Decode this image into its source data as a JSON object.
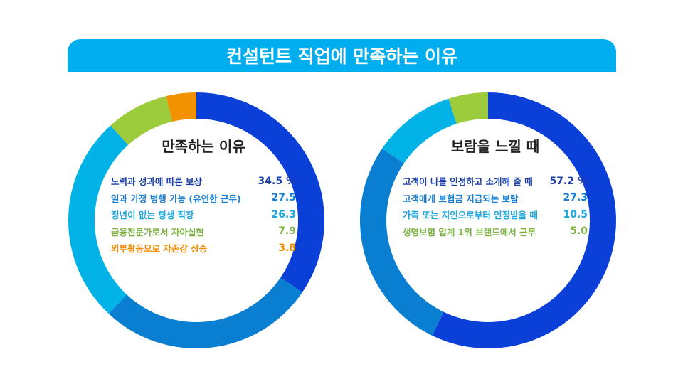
{
  "title": "컨설턴트 직업에 만족하는 이유",
  "chart_data": [
    {
      "type": "pie",
      "title": "만족하는 이유",
      "unit": "%",
      "categories": [
        "노력과 성과에 따른 보상",
        "일과 가정 병행 가능 (유연한 근무)",
        "정년이 없는 평생 직장",
        "금융전문가로서 자아실현",
        "외부활동으로 자존감 상승"
      ],
      "values": [
        34.5,
        27.5,
        26.3,
        7.9,
        3.8
      ],
      "labels": [
        "34.5 %",
        "27.5",
        "26.3",
        "7.9",
        "3.8"
      ],
      "colors": [
        "#0a3fd8",
        "#0a7fd2",
        "#00b2e6",
        "#9ccb3b",
        "#f39200"
      ],
      "label_colors": [
        "#1b3fa8",
        "#1a7fd0",
        "#1aa8de",
        "#7cb342",
        "#f08c00"
      ]
    },
    {
      "type": "pie",
      "title": "보람을 느낄 때",
      "unit": "%",
      "categories": [
        "고객이 나를 인정하고 소개해 줄 때",
        "고객에게 보험금 지급되는 보람",
        "가족 또는 지인으로부터 인정받을 때",
        "생명보험 업계 1위 브랜드에서 근무"
      ],
      "values": [
        57.2,
        27.3,
        10.5,
        5.0
      ],
      "labels": [
        "57.2 %",
        "27.3",
        "10.5",
        "5.0"
      ],
      "colors": [
        "#0a3fd8",
        "#0a7fd2",
        "#00b2e6",
        "#9ccb3b"
      ],
      "label_colors": [
        "#1b3fa8",
        "#1a7fd0",
        "#1aa8de",
        "#7cb342"
      ]
    }
  ]
}
